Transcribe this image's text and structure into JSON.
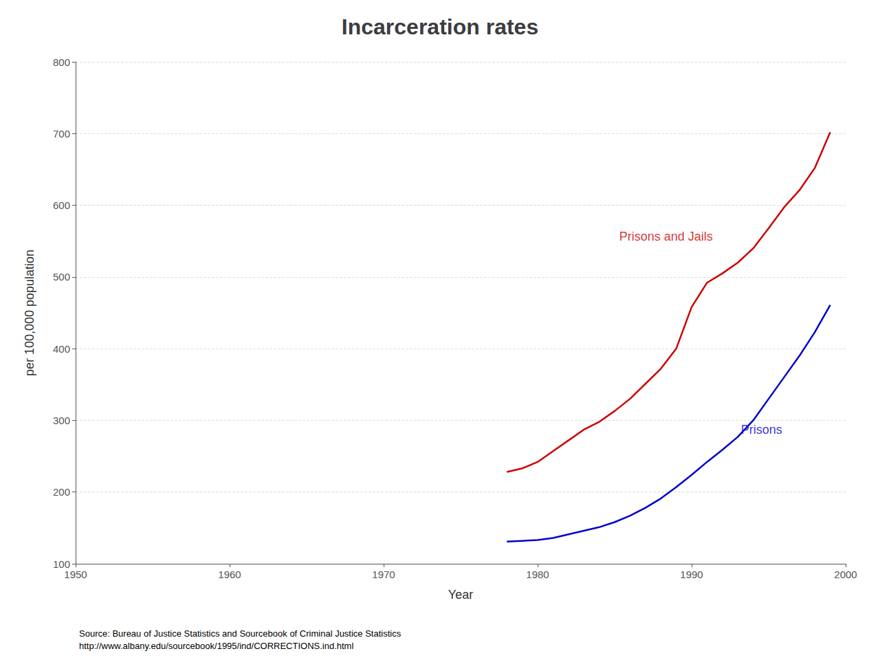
{
  "chart_data": {
    "type": "line",
    "title": "Incarceration rates",
    "x_label": "Year",
    "y_label": "per 100,000 population",
    "x": [
      1978,
      1979,
      1980,
      1981,
      1982,
      1983,
      1984,
      1985,
      1986,
      1987,
      1988,
      1989,
      1990,
      1991,
      1992,
      1993,
      1994,
      1995,
      1996,
      1997,
      1998,
      1999
    ],
    "series": [
      {
        "name": "Prisons and Jails",
        "color": "#cc0000",
        "values": [
          228,
          233,
          242,
          257,
          272,
          287,
          298,
          313,
          330,
          351,
          372,
          400,
          458,
          492,
          505,
          520,
          540,
          568,
          597,
          621,
          652,
          702
        ]
      },
      {
        "name": "Prisons",
        "color": "#0000cc",
        "values": [
          131,
          132,
          133,
          136,
          141,
          146,
          151,
          158,
          167,
          178,
          191,
          207,
          224,
          242,
          259,
          277,
          300,
          330,
          360,
          390,
          423,
          461
        ]
      }
    ],
    "annotations": [
      {
        "text": "Prisons and Jails",
        "x": 1985.3,
        "y": 548,
        "color": "#cc0000"
      },
      {
        "text": "Prisons",
        "x": 1993.2,
        "y": 278,
        "color": "#0000cc"
      }
    ],
    "source": [
      "Source: Bureau of Justice Statistics and Sourcebook of Criminal Justice Statistics",
      "http://www.albany.edu/sourcebook/1995/ind/CORRECTIONS.ind.html"
    ],
    "xlim": [
      1950,
      2000
    ],
    "xticks": [
      1950,
      1960,
      1970,
      1980,
      1990,
      2000
    ],
    "ylim": [
      100,
      800
    ],
    "yticks": [
      100,
      200,
      300,
      400,
      500,
      600,
      700,
      800
    ],
    "grid": true
  }
}
